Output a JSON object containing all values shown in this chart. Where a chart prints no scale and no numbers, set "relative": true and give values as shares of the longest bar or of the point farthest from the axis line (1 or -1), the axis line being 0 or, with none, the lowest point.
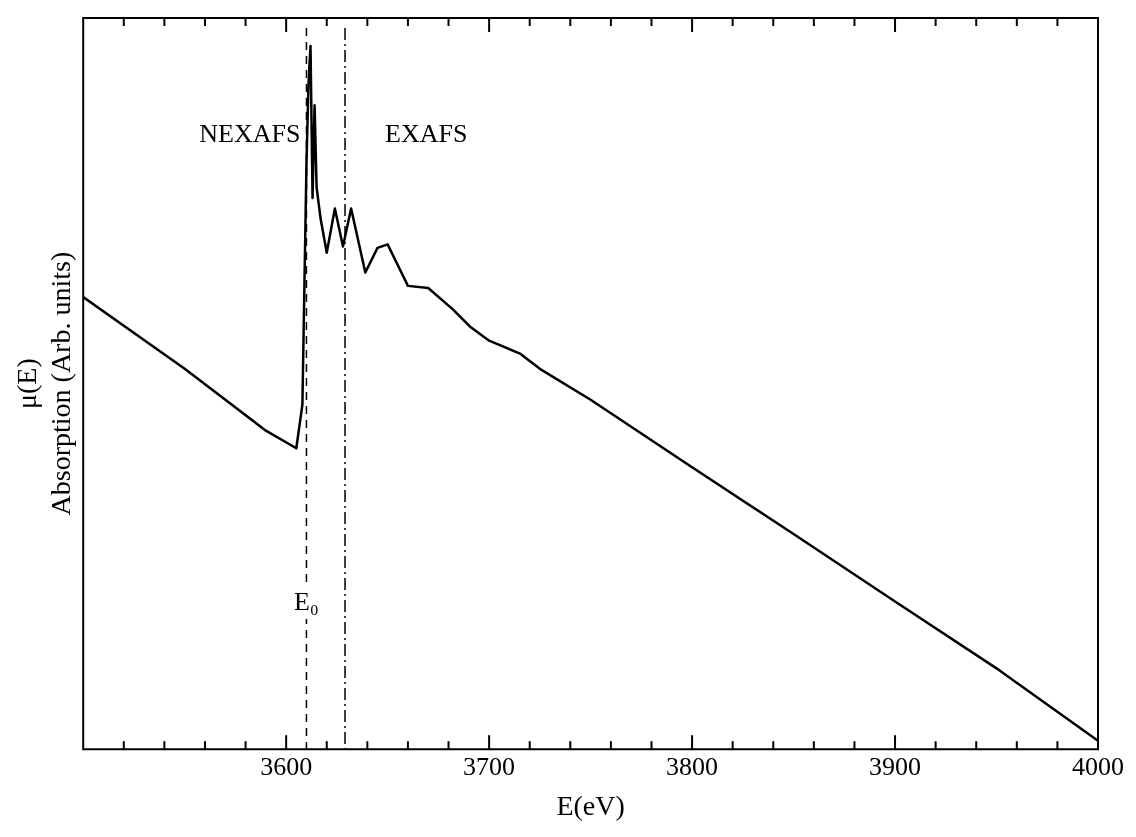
{
  "chart_data": {
    "type": "line",
    "xlabel": "E(eV)",
    "ylabel": "μ(E)\nAbsorption (Arb. units)",
    "relative": true,
    "x": [
      3500,
      3550,
      3590,
      3605,
      3608,
      3610,
      3611,
      3612,
      3613,
      3614,
      3615,
      3617,
      3620,
      3624,
      3628,
      3632,
      3639,
      3645,
      3650,
      3660,
      3670,
      3682,
      3691,
      3700,
      3715,
      3725,
      3750,
      3800,
      3850,
      3900,
      3950,
      4000
    ],
    "series": [
      {
        "color": "#000000",
        "values": [
          0.643,
          0.541,
          0.453,
          0.428,
          0.49,
          0.832,
          0.946,
          1.0,
          0.784,
          0.916,
          0.799,
          0.754,
          0.706,
          0.769,
          0.715,
          0.769,
          0.678,
          0.713,
          0.718,
          0.659,
          0.656,
          0.626,
          0.6,
          0.581,
          0.563,
          0.541,
          0.497,
          0.401,
          0.306,
          0.21,
          0.115,
          0.012
        ]
      }
    ],
    "xlim": [
      3500,
      4000
    ],
    "xticks": [
      {
        "value": 3520,
        "label": null
      },
      {
        "value": 3540,
        "label": null
      },
      {
        "value": 3560,
        "label": null
      },
      {
        "value": 3580,
        "label": null
      },
      3600,
      {
        "value": 3620,
        "label": null
      },
      {
        "value": 3640,
        "label": null
      },
      {
        "value": 3660,
        "label": null
      },
      {
        "value": 3680,
        "label": null
      },
      3700,
      {
        "value": 3720,
        "label": null
      },
      {
        "value": 3740,
        "label": null
      },
      {
        "value": 3760,
        "label": null
      },
      {
        "value": 3780,
        "label": null
      },
      3800,
      {
        "value": 3820,
        "label": null
      },
      {
        "value": 3840,
        "label": null
      },
      {
        "value": 3860,
        "label": null
      },
      {
        "value": 3880,
        "label": null
      },
      3900,
      {
        "value": 3920,
        "label": null
      },
      {
        "value": 3940,
        "label": null
      },
      {
        "value": 3960,
        "label": null
      },
      {
        "value": 3980,
        "label": null
      },
      4000
    ],
    "ref_lines": [
      {
        "axis": "x",
        "value": 3610,
        "label": "E₀",
        "line_style": "dashed",
        "color": "#000000"
      },
      {
        "axis": "x",
        "value": 3629,
        "line_style": "dashed",
        "color": "#000000"
      }
    ],
    "annotations": [
      "NEXAFS",
      "EXAFS"
    ],
    "grid": false,
    "legend": false,
    "marker": "none",
    "line_style": "solid"
  }
}
